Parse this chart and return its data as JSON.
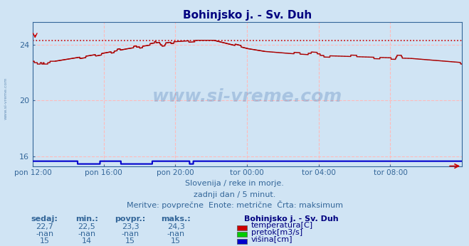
{
  "title": "Bohinjsko j. - Sv. Duh",
  "bg_color": "#d0e4f4",
  "x_labels": [
    "pon 12:00",
    "pon 16:00",
    "pon 20:00",
    "tor 00:00",
    "tor 04:00",
    "tor 08:00"
  ],
  "x_ticks_norm": [
    0.0,
    0.1667,
    0.3333,
    0.5,
    0.6667,
    0.8333
  ],
  "total_points": 576,
  "ylim": [
    15.3,
    25.6
  ],
  "yticks": [
    16,
    20,
    24
  ],
  "temp_color": "#aa0000",
  "height_color": "#0000cc",
  "flow_color": "#00aa00",
  "grid_color": "#ffbbbb",
  "max_line_color": "#cc0000",
  "temp_max": 24.3,
  "subtitle1": "Slovenija / reke in morje.",
  "subtitle2": "zadnji dan / 5 minut.",
  "subtitle3": "Meritve: povprečne  Enote: metrične  Črta: maksimum",
  "legend_title": "Bohinjsko j. - Sv. Duh",
  "legend_items": [
    "temperatura[C]",
    "pretok[m3/s]",
    "višina[cm]"
  ],
  "legend_colors": [
    "#cc0000",
    "#00cc00",
    "#0000cc"
  ],
  "table_headers": [
    "sedaj:",
    "min.:",
    "povpr.:",
    "maks.:"
  ],
  "table_temp": [
    "22,7",
    "22,5",
    "23,3",
    "24,3"
  ],
  "table_flow": [
    "-nan",
    "-nan",
    "-nan",
    "-nan"
  ],
  "table_height": [
    "15",
    "14",
    "15",
    "15"
  ],
  "watermark": "www.si-vreme.com"
}
